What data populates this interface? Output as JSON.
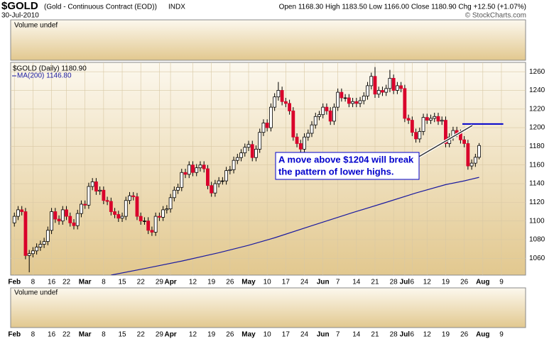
{
  "header": {
    "symbol": "$GOLD",
    "description": "(Gold - Continuous Contract (EOD))",
    "exchange": "INDX",
    "date": "30-Jul-2010",
    "quote": "Open 1168.30 High 1183.50 Low 1166.00 Close 1180.90 Chg +12.50 (+1.07%)",
    "copyright": "© StockCharts.com"
  },
  "chart_data": {
    "type": "candlestick",
    "legend": "$GOLD (Daily) 1180.90",
    "ma_legend": "MA(200) 1146.80",
    "volume_label_top": "Volume undef",
    "volume_label_bottom": "Volume undef",
    "up_color": "#ffffff",
    "down_color": "#d9002b",
    "ma_color": "#1a1aa0",
    "grid": true,
    "xlim": [
      -1,
      137.5
    ],
    "ylim": [
      1042,
      1270
    ],
    "yticks": [
      1060,
      1080,
      1100,
      1120,
      1140,
      1160,
      1180,
      1200,
      1220,
      1240,
      1260
    ],
    "xticks": [
      {
        "value": 0,
        "label": "Feb"
      },
      {
        "value": 5,
        "label": "8"
      },
      {
        "value": 10,
        "label": "16"
      },
      {
        "value": 14,
        "label": "22"
      },
      {
        "value": 19,
        "label": "Mar"
      },
      {
        "value": 24,
        "label": "8"
      },
      {
        "value": 29,
        "label": "15"
      },
      {
        "value": 34,
        "label": "22"
      },
      {
        "value": 39,
        "label": "29"
      },
      {
        "value": 42,
        "label": "Apr"
      },
      {
        "value": 48,
        "label": "12"
      },
      {
        "value": 53,
        "label": "19"
      },
      {
        "value": 58,
        "label": "26"
      },
      {
        "value": 63,
        "label": "May"
      },
      {
        "value": 68,
        "label": "10"
      },
      {
        "value": 73,
        "label": "17"
      },
      {
        "value": 78,
        "label": "24"
      },
      {
        "value": 83,
        "label": "Jun"
      },
      {
        "value": 87,
        "label": "7"
      },
      {
        "value": 92,
        "label": "14"
      },
      {
        "value": 97,
        "label": "21"
      },
      {
        "value": 102,
        "label": "28"
      },
      {
        "value": 105,
        "label": "Jul"
      },
      {
        "value": 107,
        "label": "6"
      },
      {
        "value": 111,
        "label": "12"
      },
      {
        "value": 116,
        "label": "19"
      },
      {
        "value": 121,
        "label": "26"
      },
      {
        "value": 126,
        "label": "Aug"
      },
      {
        "value": 131,
        "label": "9"
      }
    ],
    "open": [
      1098,
      1105,
      1112,
      1110,
      1063,
      1065,
      1068,
      1072,
      1075,
      1078,
      1090,
      1110,
      1102,
      1100,
      1112,
      1105,
      1098,
      1095,
      1108,
      1118,
      1117,
      1137,
      1142,
      1132,
      1133,
      1122,
      1121,
      1110,
      1107,
      1103,
      1105,
      1122,
      1127,
      1126,
      1105,
      1100,
      1100,
      1090,
      1088,
      1105,
      1104,
      1112,
      1113,
      1125,
      1133,
      1136,
      1152,
      1150,
      1160,
      1152,
      1157,
      1160,
      1156,
      1138,
      1130,
      1140,
      1143,
      1143,
      1154,
      1155,
      1165,
      1168,
      1173,
      1179,
      1182,
      1168,
      1177,
      1195,
      1205,
      1200,
      1222,
      1233,
      1240,
      1228,
      1226,
      1218,
      1190,
      1183,
      1177,
      1190,
      1194,
      1203,
      1212,
      1214,
      1222,
      1218,
      1207,
      1222,
      1238,
      1232,
      1232,
      1226,
      1228,
      1226,
      1229,
      1234,
      1245,
      1255,
      1236,
      1240,
      1238,
      1242,
      1253,
      1240,
      1245,
      1242,
      1210,
      1208,
      1195,
      1188,
      1196,
      1211,
      1208,
      1210,
      1212,
      1207,
      1208,
      1183,
      1190,
      1197,
      1194,
      1187,
      1183,
      1159,
      1162,
      1168.3
    ],
    "high": [
      1109,
      1116,
      1116,
      1114,
      1069,
      1072,
      1076,
      1079,
      1082,
      1094,
      1114,
      1114,
      1106,
      1116,
      1116,
      1109,
      1102,
      1112,
      1122,
      1122,
      1141,
      1146,
      1146,
      1137,
      1137,
      1126,
      1125,
      1114,
      1111,
      1109,
      1126,
      1131,
      1131,
      1130,
      1109,
      1104,
      1104,
      1094,
      1109,
      1109,
      1116,
      1117,
      1129,
      1137,
      1140,
      1156,
      1156,
      1164,
      1164,
      1161,
      1164,
      1164,
      1160,
      1142,
      1144,
      1147,
      1147,
      1158,
      1159,
      1169,
      1172,
      1177,
      1183,
      1186,
      1186,
      1181,
      1199,
      1209,
      1209,
      1226,
      1237,
      1249,
      1244,
      1232,
      1230,
      1222,
      1194,
      1187,
      1194,
      1198,
      1207,
      1216,
      1218,
      1226,
      1226,
      1222,
      1226,
      1242,
      1242,
      1236,
      1236,
      1232,
      1232,
      1233,
      1238,
      1249,
      1259,
      1265,
      1244,
      1244,
      1246,
      1262,
      1257,
      1249,
      1249,
      1246,
      1214,
      1212,
      1199,
      1200,
      1215,
      1215,
      1214,
      1216,
      1216,
      1212,
      1212,
      1194,
      1201,
      1201,
      1198,
      1191,
      1187,
      1166,
      1172,
      1183.5
    ],
    "low": [
      1094,
      1101,
      1106,
      1059,
      1045,
      1061,
      1064,
      1068,
      1071,
      1074,
      1086,
      1098,
      1096,
      1096,
      1101,
      1094,
      1091,
      1091,
      1104,
      1113,
      1113,
      1133,
      1128,
      1128,
      1118,
      1117,
      1106,
      1103,
      1099,
      1099,
      1101,
      1118,
      1122,
      1101,
      1096,
      1096,
      1086,
      1084,
      1084,
      1100,
      1100,
      1108,
      1109,
      1121,
      1129,
      1132,
      1146,
      1146,
      1148,
      1148,
      1153,
      1152,
      1134,
      1126,
      1126,
      1136,
      1139,
      1139,
      1150,
      1151,
      1161,
      1164,
      1169,
      1175,
      1164,
      1164,
      1173,
      1191,
      1196,
      1196,
      1218,
      1229,
      1224,
      1222,
      1214,
      1186,
      1179,
      1170,
      1173,
      1186,
      1190,
      1199,
      1208,
      1210,
      1214,
      1203,
      1203,
      1218,
      1228,
      1228,
      1222,
      1222,
      1222,
      1222,
      1225,
      1230,
      1241,
      1232,
      1232,
      1234,
      1234,
      1238,
      1236,
      1236,
      1238,
      1206,
      1204,
      1191,
      1184,
      1184,
      1192,
      1204,
      1204,
      1206,
      1203,
      1203,
      1179,
      1179,
      1186,
      1190,
      1183,
      1179,
      1155,
      1155,
      1158,
      1166
    ],
    "close": [
      1105,
      1112,
      1110,
      1063,
      1065,
      1068,
      1072,
      1075,
      1078,
      1090,
      1110,
      1102,
      1100,
      1112,
      1105,
      1098,
      1095,
      1108,
      1118,
      1117,
      1137,
      1142,
      1132,
      1133,
      1122,
      1121,
      1110,
      1107,
      1103,
      1105,
      1122,
      1127,
      1126,
      1105,
      1100,
      1100,
      1090,
      1088,
      1105,
      1104,
      1112,
      1113,
      1125,
      1133,
      1136,
      1152,
      1150,
      1160,
      1152,
      1157,
      1160,
      1156,
      1138,
      1130,
      1140,
      1143,
      1143,
      1154,
      1155,
      1165,
      1168,
      1173,
      1179,
      1182,
      1168,
      1177,
      1195,
      1205,
      1200,
      1222,
      1233,
      1240,
      1228,
      1226,
      1218,
      1190,
      1183,
      1177,
      1190,
      1194,
      1203,
      1212,
      1214,
      1222,
      1218,
      1207,
      1222,
      1238,
      1232,
      1232,
      1226,
      1228,
      1226,
      1229,
      1234,
      1245,
      1255,
      1236,
      1240,
      1238,
      1242,
      1253,
      1240,
      1245,
      1242,
      1210,
      1208,
      1195,
      1188,
      1196,
      1211,
      1208,
      1210,
      1212,
      1207,
      1208,
      1183,
      1190,
      1197,
      1194,
      1187,
      1183,
      1159,
      1162,
      1168.3,
      1180.9
    ],
    "ma": {
      "x": [
        26,
        35,
        45,
        55,
        63,
        70,
        80,
        91,
        100,
        108,
        116,
        121,
        125
      ],
      "values": [
        1042,
        1049,
        1057,
        1066,
        1074,
        1082,
        1095,
        1109,
        1120,
        1130,
        1139,
        1143,
        1146.8
      ]
    },
    "resistance": {
      "value": 1204,
      "x": [
        120.5,
        131.5
      ],
      "color": "#0000cc"
    },
    "annotation": [
      "A move above $1204 will break",
      "the pattern of lower highs."
    ]
  }
}
